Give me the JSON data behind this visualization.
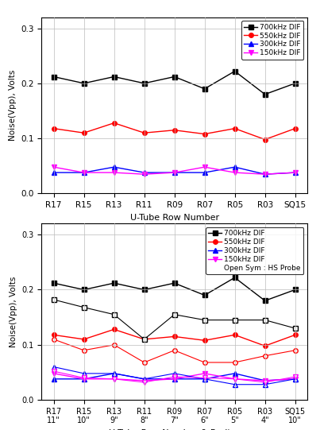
{
  "x_labels_top": [
    "R17",
    "R15",
    "R13",
    "R11",
    "R09",
    "R07",
    "R05",
    "R03",
    "SQ15"
  ],
  "x_labels_bottom_line1": [
    "R17",
    "R15",
    "R13",
    "R11",
    "R09",
    "R07",
    "R05",
    "R03",
    "SQ15"
  ],
  "x_labels_bottom_line2": [
    "11\"",
    "10\"",
    "9\"",
    "8\"",
    "7\"",
    "6\"",
    "5\"",
    "4\"",
    "10\""
  ],
  "top_700_black": [
    0.212,
    0.2,
    0.212,
    0.2,
    0.212,
    0.19,
    0.222,
    0.18,
    0.2
  ],
  "top_550_red": [
    0.118,
    0.11,
    0.128,
    0.11,
    0.115,
    0.108,
    0.118,
    0.098,
    0.118
  ],
  "top_300_blue": [
    0.038,
    0.038,
    0.048,
    0.038,
    0.038,
    0.038,
    0.048,
    0.035,
    0.038
  ],
  "top_150_mag": [
    0.048,
    0.038,
    0.038,
    0.035,
    0.038,
    0.048,
    0.038,
    0.035,
    0.038
  ],
  "bot_700_norm": [
    0.212,
    0.2,
    0.212,
    0.2,
    0.212,
    0.19,
    0.222,
    0.18,
    0.2
  ],
  "bot_550_norm": [
    0.118,
    0.11,
    0.128,
    0.11,
    0.115,
    0.108,
    0.118,
    0.098,
    0.118
  ],
  "bot_300_norm": [
    0.038,
    0.038,
    0.048,
    0.038,
    0.038,
    0.038,
    0.048,
    0.035,
    0.038
  ],
  "bot_150_norm": [
    0.048,
    0.038,
    0.038,
    0.035,
    0.038,
    0.048,
    0.038,
    0.035,
    0.038
  ],
  "bot_700_hs": [
    0.182,
    0.168,
    0.155,
    0.11,
    0.155,
    0.145,
    0.145,
    0.145,
    0.13
  ],
  "bot_550_hs": [
    0.11,
    0.09,
    0.1,
    0.068,
    0.09,
    0.068,
    0.068,
    0.08,
    0.09
  ],
  "bot_300_hs": [
    0.06,
    0.048,
    0.048,
    0.038,
    0.048,
    0.038,
    0.028,
    0.028,
    0.038
  ],
  "bot_150_hs": [
    0.052,
    0.04,
    0.038,
    0.032,
    0.042,
    0.04,
    0.038,
    0.032,
    0.042
  ],
  "ylim": [
    0.0,
    0.32
  ],
  "yticks": [
    0.0,
    0.1,
    0.2,
    0.3
  ],
  "ylabel": "Noise(Vpp), Volts",
  "xlabel_top": "U-Tube Row Number",
  "xlabel_bot": "U-Tube Row Number & Radius",
  "color_black": "#000000",
  "color_red": "#ff0000",
  "color_blue": "#0000ff",
  "color_magenta": "#ff00ff"
}
